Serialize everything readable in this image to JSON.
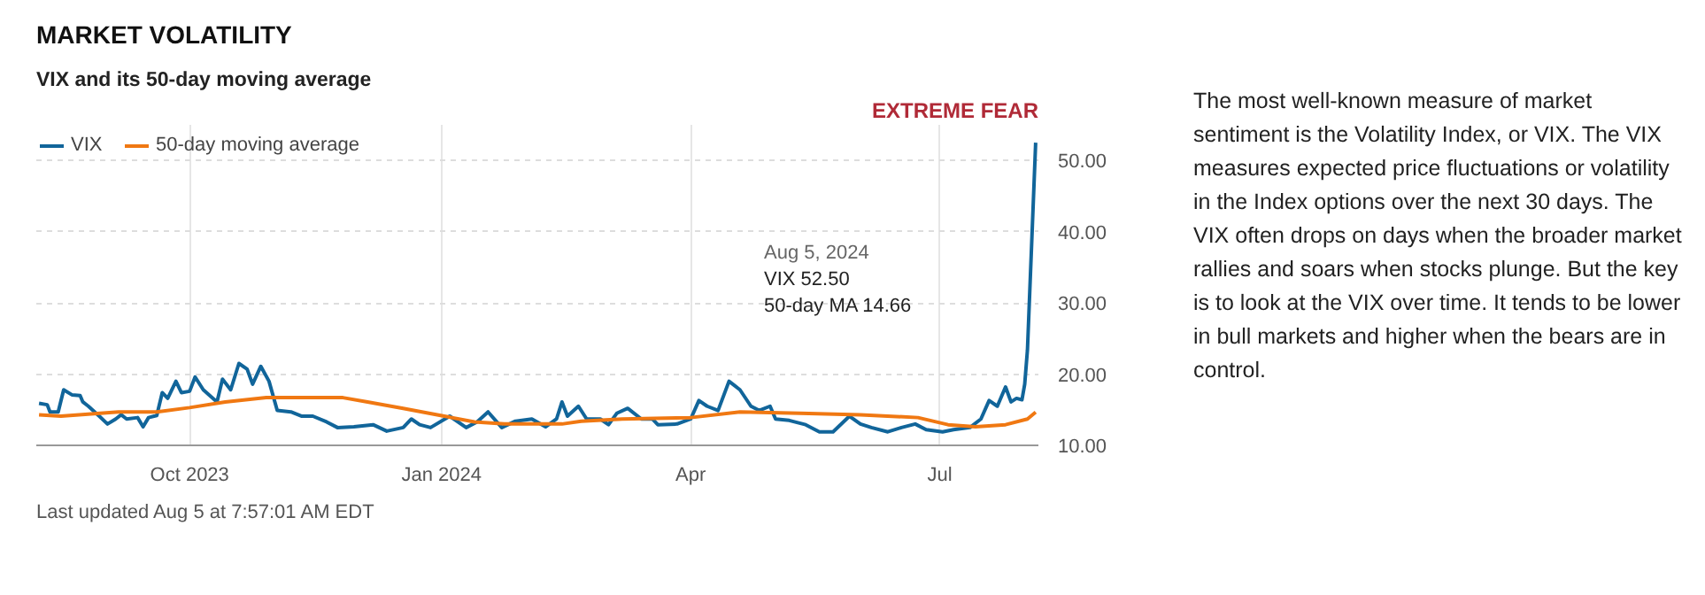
{
  "chart_data": {
    "type": "line",
    "title": "MARKET VOLATILITY",
    "subtitle": "VIX and its 50-day moving average",
    "xlim": [
      "2023-08-06",
      "2024-08-06"
    ],
    "ylim": [
      10,
      55
    ],
    "xticks": [
      {
        "value": "2023-10-01",
        "label": "Oct 2023"
      },
      {
        "value": "2024-01-01",
        "label": "Jan 2024"
      },
      {
        "value": "2024-04-01",
        "label": "Apr"
      },
      {
        "value": "2024-07-01",
        "label": "Jul"
      }
    ],
    "yticks": [
      {
        "value": 10,
        "label": "10.00"
      },
      {
        "value": 20,
        "label": "20.00"
      },
      {
        "value": 30,
        "label": "30.00"
      },
      {
        "value": 40,
        "label": "40.00"
      },
      {
        "value": 50,
        "label": "50.00"
      }
    ],
    "grid": true,
    "legend": "top left",
    "line_style": "solid",
    "series": [
      {
        "name": "VIX",
        "color": "#11659a",
        "x": [
          "2023-08-07",
          "2023-08-10",
          "2023-08-11",
          "2023-08-14",
          "2023-08-16",
          "2023-08-19",
          "2023-08-22",
          "2023-08-23",
          "2023-08-25",
          "2023-08-29",
          "2023-09-01",
          "2023-09-04",
          "2023-09-06",
          "2023-09-08",
          "2023-09-12",
          "2023-09-14",
          "2023-09-16",
          "2023-09-19",
          "2023-09-21",
          "2023-09-23",
          "2023-09-26",
          "2023-09-28",
          "2023-10-01",
          "2023-10-03",
          "2023-10-06",
          "2023-10-11",
          "2023-10-13",
          "2023-10-16",
          "2023-10-19",
          "2023-10-22",
          "2023-10-24",
          "2023-10-27",
          "2023-10-30",
          "2023-11-02",
          "2023-11-07",
          "2023-11-11",
          "2023-11-15",
          "2023-11-20",
          "2023-11-24",
          "2023-11-30",
          "2023-12-07",
          "2023-12-12",
          "2023-12-18",
          "2023-12-21",
          "2023-12-24",
          "2023-12-28",
          "2024-01-04",
          "2024-01-10",
          "2024-01-14",
          "2024-01-18",
          "2024-01-23",
          "2024-01-28",
          "2024-02-03",
          "2024-02-08",
          "2024-02-12",
          "2024-02-14",
          "2024-02-16",
          "2024-02-20",
          "2024-02-23",
          "2024-02-28",
          "2024-03-02",
          "2024-03-05",
          "2024-03-09",
          "2024-03-14",
          "2024-03-18",
          "2024-03-20",
          "2024-03-27",
          "2024-04-01",
          "2024-04-04",
          "2024-04-07",
          "2024-04-11",
          "2024-04-15",
          "2024-04-17",
          "2024-04-19",
          "2024-04-23",
          "2024-04-26",
          "2024-04-30",
          "2024-05-02",
          "2024-05-07",
          "2024-05-13",
          "2024-05-18",
          "2024-05-23",
          "2024-05-29",
          "2024-06-02",
          "2024-06-06",
          "2024-06-12",
          "2024-06-17",
          "2024-06-22",
          "2024-06-26",
          "2024-07-02",
          "2024-07-06",
          "2024-07-12",
          "2024-07-16",
          "2024-07-19",
          "2024-07-22",
          "2024-07-25",
          "2024-07-27",
          "2024-07-29",
          "2024-07-31",
          "2024-08-01",
          "2024-08-02",
          "2024-08-05"
        ],
        "values": [
          15.9,
          15.7,
          14.7,
          14.7,
          17.8,
          17.1,
          17.0,
          16.1,
          15.5,
          14.1,
          13.0,
          13.7,
          14.3,
          13.7,
          13.9,
          12.6,
          13.9,
          14.2,
          17.4,
          16.6,
          19.0,
          17.4,
          17.6,
          19.6,
          17.8,
          16.1,
          19.3,
          17.8,
          21.5,
          20.7,
          18.6,
          21.1,
          19.0,
          14.9,
          14.7,
          14.1,
          14.1,
          13.3,
          12.5,
          12.6,
          12.9,
          12.0,
          12.5,
          13.7,
          12.9,
          12.5,
          14.1,
          12.5,
          13.3,
          14.7,
          12.5,
          13.4,
          13.7,
          12.6,
          13.7,
          16.1,
          14.1,
          15.5,
          13.7,
          13.7,
          12.9,
          14.5,
          15.2,
          13.7,
          13.7,
          12.9,
          13.0,
          13.7,
          16.3,
          15.5,
          14.9,
          19.0,
          18.4,
          17.8,
          15.5,
          14.9,
          15.5,
          13.7,
          13.5,
          12.9,
          11.9,
          11.9,
          14.1,
          13.0,
          12.5,
          11.9,
          12.5,
          13.0,
          12.2,
          11.9,
          12.2,
          12.5,
          13.7,
          16.3,
          15.5,
          18.2,
          16.1,
          16.6,
          16.4,
          18.6,
          23.4,
          52.5
        ]
      },
      {
        "name": "50-day moving average",
        "color": "#f07812",
        "x": [
          "2023-08-07",
          "2023-08-15",
          "2023-09-05",
          "2023-09-19",
          "2023-10-01",
          "2023-10-14",
          "2023-10-29",
          "2023-11-09",
          "2023-11-26",
          "2023-12-05",
          "2023-12-18",
          "2024-01-02",
          "2024-01-13",
          "2024-01-24",
          "2024-02-14",
          "2024-02-21",
          "2024-03-07",
          "2024-04-01",
          "2024-04-19",
          "2024-05-11",
          "2024-06-02",
          "2024-06-23",
          "2024-07-04",
          "2024-07-14",
          "2024-07-25",
          "2024-08-02",
          "2024-08-05"
        ],
        "values": [
          14.3,
          14.1,
          14.7,
          14.7,
          15.3,
          16.1,
          16.7,
          16.7,
          16.7,
          16.1,
          15.2,
          14.1,
          13.3,
          13.0,
          13.0,
          13.4,
          13.7,
          13.9,
          14.7,
          14.5,
          14.3,
          13.9,
          12.9,
          12.6,
          12.9,
          13.7,
          14.66
        ]
      }
    ],
    "annotations": [
      "EXTREME FEAR",
      "Last updated Aug 5 at 7:57:01 AM EDT",
      "The most well-known measure of market sentiment is the Volatility Index, or VIX. The VIX measures expected price fluctuations or volatility in the Index options over the next 30 days. The VIX often drops on days when the broader market rallies and soars when stocks plunge. But the key is to look at the VIX over time. It tends to be lower in bull markets and higher when the bears are in control.",
      "Aug 5, 2024",
      "VIX 52.50",
      "50-day MA 14.66"
    ]
  }
}
